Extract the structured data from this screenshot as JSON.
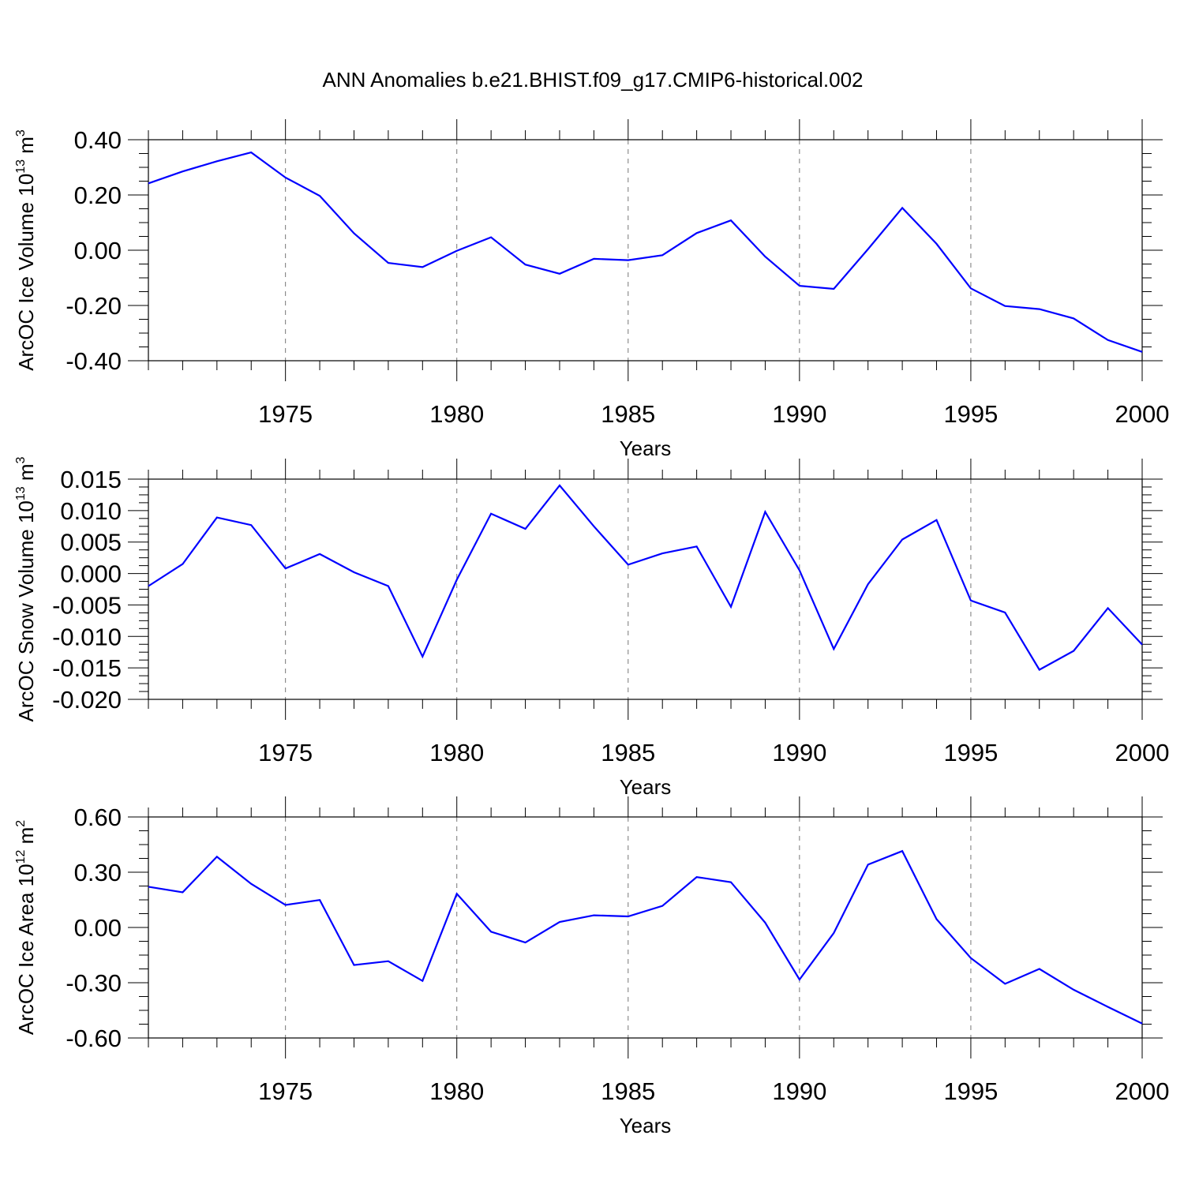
{
  "figure": {
    "title": "ANN Anomalies b.e21.BHIST.f09_g17.CMIP6-historical.002"
  },
  "style": {
    "line_color": "#0000ff",
    "grid_color": "#777777",
    "axis_color": "#000000"
  },
  "chart_data": [
    {
      "type": "line",
      "title": "",
      "ylabel": {
        "text": "ArcOC Ice Volume 10",
        "sup": "13",
        "unit": "m",
        "unit_sup": "3"
      },
      "xlabel": "Years",
      "xlim": [
        1971,
        2000
      ],
      "ylim": [
        -0.4,
        0.4
      ],
      "yticks": [
        -0.4,
        -0.2,
        0.0,
        0.2,
        0.4
      ],
      "ytick_labels": [
        "-0.40",
        "-0.20",
        "0.00",
        "0.20",
        "0.40"
      ],
      "xticks": [
        1975,
        1980,
        1985,
        1990,
        1995,
        2000
      ],
      "xtick_labels": [
        "1975",
        "1980",
        "1985",
        "1990",
        "1995",
        "2000"
      ],
      "grid": "vertical dashed at major x ticks",
      "series": [
        {
          "x": [
            1971,
            1972,
            1973,
            1974,
            1975,
            1976,
            1977,
            1978,
            1979,
            1980,
            1981,
            1982,
            1983,
            1984,
            1985,
            1986,
            1987,
            1988,
            1989,
            1990,
            1991,
            1992,
            1993,
            1994,
            1995,
            1996,
            1997,
            1998,
            1999,
            2000
          ],
          "values": [
            0.242,
            0.285,
            0.322,
            0.354,
            0.263,
            0.197,
            0.061,
            -0.046,
            -0.061,
            -0.002,
            0.047,
            -0.052,
            -0.085,
            -0.031,
            -0.036,
            -0.018,
            0.062,
            0.108,
            -0.023,
            -0.129,
            -0.14,
            0.004,
            0.153,
            0.023,
            -0.138,
            -0.202,
            -0.213,
            -0.247,
            -0.325,
            -0.368
          ]
        }
      ]
    },
    {
      "type": "line",
      "title": "",
      "ylabel": {
        "text": "ArcOC Snow Volume 10",
        "sup": "13",
        "unit": "m",
        "unit_sup": "3"
      },
      "xlabel": "Years",
      "xlim": [
        1971,
        2000
      ],
      "ylim": [
        -0.02,
        0.015
      ],
      "yticks": [
        -0.02,
        -0.015,
        -0.01,
        -0.005,
        0.0,
        0.005,
        0.01,
        0.015
      ],
      "ytick_labels": [
        "-0.020",
        "-0.015",
        "-0.010",
        "-0.005",
        "0.000",
        "0.005",
        "0.010",
        "0.015"
      ],
      "xticks": [
        1975,
        1980,
        1985,
        1990,
        1995,
        2000
      ],
      "xtick_labels": [
        "1975",
        "1980",
        "1985",
        "1990",
        "1995",
        "2000"
      ],
      "grid": "vertical dashed at major x ticks",
      "series": [
        {
          "x": [
            1971,
            1972,
            1973,
            1974,
            1975,
            1976,
            1977,
            1978,
            1979,
            1980,
            1981,
            1982,
            1983,
            1984,
            1985,
            1986,
            1987,
            1988,
            1989,
            1990,
            1991,
            1992,
            1993,
            1994,
            1995,
            1996,
            1997,
            1998,
            1999,
            2000
          ],
          "values": [
            -0.002,
            0.0015,
            0.0089,
            0.0077,
            0.0008,
            0.0031,
            0.0002,
            -0.002,
            -0.0132,
            -0.001,
            0.0095,
            0.0071,
            0.014,
            0.0075,
            0.0014,
            0.0032,
            0.0043,
            -0.0053,
            0.0098,
            0.0005,
            -0.012,
            -0.0017,
            0.0054,
            0.0085,
            -0.0043,
            -0.0062,
            -0.0153,
            -0.0123,
            -0.0055,
            -0.0113
          ]
        }
      ]
    },
    {
      "type": "line",
      "title": "",
      "ylabel": {
        "text": "ArcOC Ice Area 10",
        "sup": "12",
        "unit": "m",
        "unit_sup": "2"
      },
      "xlabel": "Years",
      "xlim": [
        1971,
        2000
      ],
      "ylim": [
        -0.6,
        0.6
      ],
      "yticks": [
        -0.6,
        -0.3,
        0.0,
        0.3,
        0.6
      ],
      "ytick_labels": [
        "-0.60",
        "-0.30",
        "0.00",
        "0.30",
        "0.60"
      ],
      "xticks": [
        1975,
        1980,
        1985,
        1990,
        1995,
        2000
      ],
      "xtick_labels": [
        "1975",
        "1980",
        "1985",
        "1990",
        "1995",
        "2000"
      ],
      "grid": "vertical dashed at major x ticks",
      "series": [
        {
          "x": [
            1971,
            1972,
            1973,
            1974,
            1975,
            1976,
            1977,
            1978,
            1979,
            1980,
            1981,
            1982,
            1983,
            1984,
            1985,
            1986,
            1987,
            1988,
            1989,
            1990,
            1991,
            1992,
            1993,
            1994,
            1995,
            1996,
            1997,
            1998,
            1999,
            2000
          ],
          "values": [
            0.221,
            0.191,
            0.384,
            0.237,
            0.122,
            0.149,
            -0.204,
            -0.183,
            -0.29,
            0.183,
            -0.023,
            -0.082,
            0.03,
            0.066,
            0.06,
            0.117,
            0.274,
            0.246,
            0.026,
            -0.283,
            -0.03,
            0.341,
            0.415,
            0.045,
            -0.166,
            -0.306,
            -0.225,
            -0.338,
            -0.431,
            -0.522
          ]
        }
      ]
    }
  ]
}
